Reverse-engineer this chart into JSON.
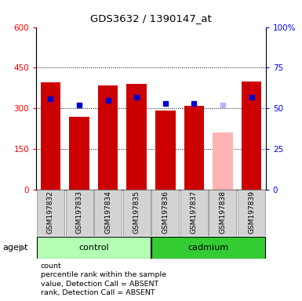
{
  "title": "GDS3632 / 1390147_at",
  "samples": [
    "GSM197832",
    "GSM197833",
    "GSM197834",
    "GSM197835",
    "GSM197836",
    "GSM197837",
    "GSM197838",
    "GSM197839"
  ],
  "groups": [
    "control",
    "control",
    "control",
    "control",
    "cadmium",
    "cadmium",
    "cadmium",
    "cadmium"
  ],
  "counts": [
    395,
    270,
    385,
    390,
    292,
    308,
    210,
    400
  ],
  "ranks": [
    56,
    52,
    55,
    57,
    53,
    53,
    52,
    57
  ],
  "absent": [
    false,
    false,
    false,
    false,
    false,
    false,
    true,
    false
  ],
  "ylim_left": [
    0,
    600
  ],
  "ylim_right": [
    0,
    100
  ],
  "yticks_left": [
    0,
    150,
    300,
    450,
    600
  ],
  "yticks_right": [
    0,
    25,
    50,
    75,
    100
  ],
  "bar_color_present": "#cc0000",
  "bar_color_absent": "#ffb3b3",
  "rank_color_present": "#0000cc",
  "rank_color_absent": "#b3b3ff",
  "bg_color": "#d3d3d3",
  "control_color": "#b3ffb3",
  "cadmium_color": "#33cc33",
  "legend_items": [
    {
      "label": "count",
      "color": "#cc0000"
    },
    {
      "label": "percentile rank within the sample",
      "color": "#0000cc"
    },
    {
      "label": "value, Detection Call = ABSENT",
      "color": "#ffb3b3"
    },
    {
      "label": "rank, Detection Call = ABSENT",
      "color": "#b3b3ff"
    }
  ]
}
